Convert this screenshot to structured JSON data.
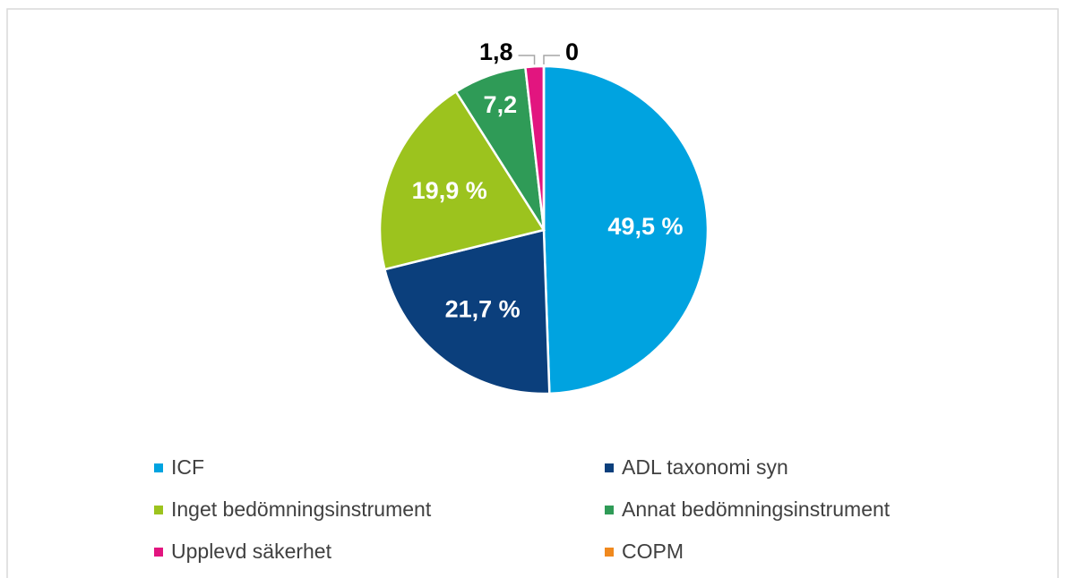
{
  "chart_data": {
    "type": "pie",
    "categories": [
      "ICF",
      "ADL taxonomi syn",
      "Inget bedömningsinstrument",
      "Annat bedömningsinstrument",
      "Upplevd säkerhet",
      "COPM"
    ],
    "values": [
      49.5,
      21.7,
      19.9,
      7.2,
      1.8,
      0
    ],
    "value_labels": [
      "49,5 %",
      "21,7 %",
      "19,9 %",
      "7,2",
      "1,8",
      "0"
    ],
    "colors": [
      "#00a3e0",
      "#0b3f7c",
      "#9cc31e",
      "#2f9b57",
      "#e2157f",
      "#f0891e"
    ]
  }
}
